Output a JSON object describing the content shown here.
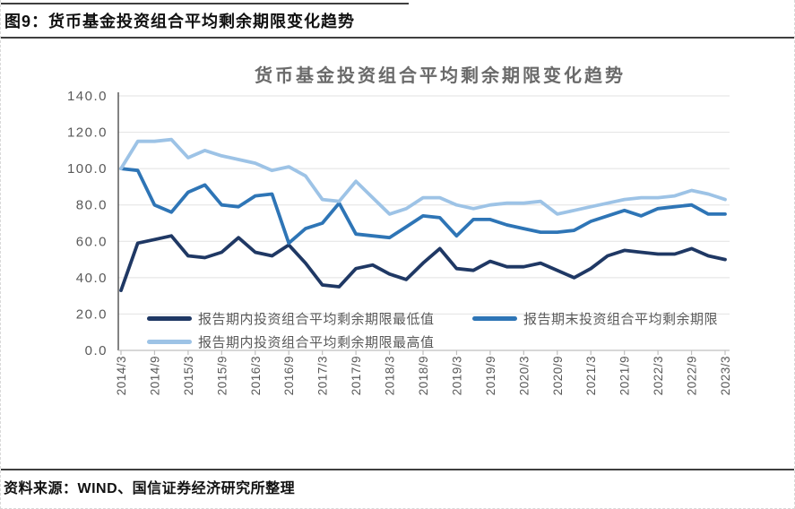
{
  "header": {
    "title": "图9：货币基金投资组合平均剩余期限变化趋势"
  },
  "source": {
    "text": "资料来源：WIND、国信证券经济研究所整理"
  },
  "chart_data": {
    "type": "line",
    "title": "货币基金投资组合平均剩余期限变化趋势",
    "xlabel": "",
    "ylabel": "",
    "ylim": [
      0,
      140
    ],
    "y_tick_step": 20,
    "y_ticks": [
      "0.0",
      "20.0",
      "40.0",
      "60.0",
      "80.0",
      "100.0",
      "120.0",
      "140.0"
    ],
    "grid": true,
    "legend_position": "bottom-inside",
    "x": [
      "2014/3",
      "2014/6",
      "2014/9",
      "2014/12",
      "2015/3",
      "2015/6",
      "2015/9",
      "2015/12",
      "2016/3",
      "2016/6",
      "2016/9",
      "2016/12",
      "2017/3",
      "2017/6",
      "2017/9",
      "2017/12",
      "2018/3",
      "2018/6",
      "2018/9",
      "2018/12",
      "2019/3",
      "2019/6",
      "2019/9",
      "2019/12",
      "2020/3",
      "2020/6",
      "2020/9",
      "2020/12",
      "2021/3",
      "2021/6",
      "2021/9",
      "2021/12",
      "2022/3",
      "2022/6",
      "2022/9",
      "2022/12",
      "2023/3"
    ],
    "x_tick_labels": [
      "2014/3",
      "2014/9",
      "2015/3",
      "2015/9",
      "2016/3",
      "2016/9",
      "2017/3",
      "2017/9",
      "2018/3",
      "2018/9",
      "2019/3",
      "2019/9",
      "2020/3",
      "2020/9",
      "2021/3",
      "2021/9",
      "2022/3",
      "2022/9",
      "2023/3"
    ],
    "series": [
      {
        "name": "报告期内投资组合平均剩余期限最低值",
        "color": "#1f3864",
        "values": [
          33,
          59,
          61,
          63,
          52,
          51,
          54,
          62,
          54,
          52,
          58,
          48,
          36,
          35,
          45,
          47,
          42,
          39,
          48,
          56,
          45,
          44,
          49,
          46,
          46,
          48,
          44,
          40,
          45,
          52,
          55,
          54,
          53,
          53,
          56,
          52,
          50
        ]
      },
      {
        "name": "报告期末投资组合平均剩余期限",
        "color": "#2e75b6",
        "values": [
          100,
          99,
          80,
          76,
          87,
          91,
          80,
          79,
          85,
          86,
          59,
          67,
          70,
          81,
          64,
          63,
          62,
          68,
          74,
          73,
          63,
          72,
          72,
          69,
          67,
          65,
          65,
          66,
          71,
          74,
          77,
          74,
          78,
          79,
          80,
          75,
          75
        ]
      },
      {
        "name": "报告期内投资组合平均剩余期限最高值",
        "color": "#9dc3e6",
        "values": [
          100,
          115,
          115,
          116,
          106,
          110,
          107,
          105,
          103,
          99,
          101,
          96,
          83,
          82,
          93,
          84,
          75,
          78,
          84,
          84,
          80,
          78,
          80,
          81,
          81,
          82,
          75,
          77,
          79,
          81,
          83,
          84,
          84,
          85,
          88,
          86,
          83
        ]
      }
    ],
    "colors": {
      "grid": "#e2e2e2",
      "x_axis": "#bfbfbf",
      "y_axis": "#404040",
      "tick": "#bfbfbf",
      "label_text": "#595959"
    }
  }
}
